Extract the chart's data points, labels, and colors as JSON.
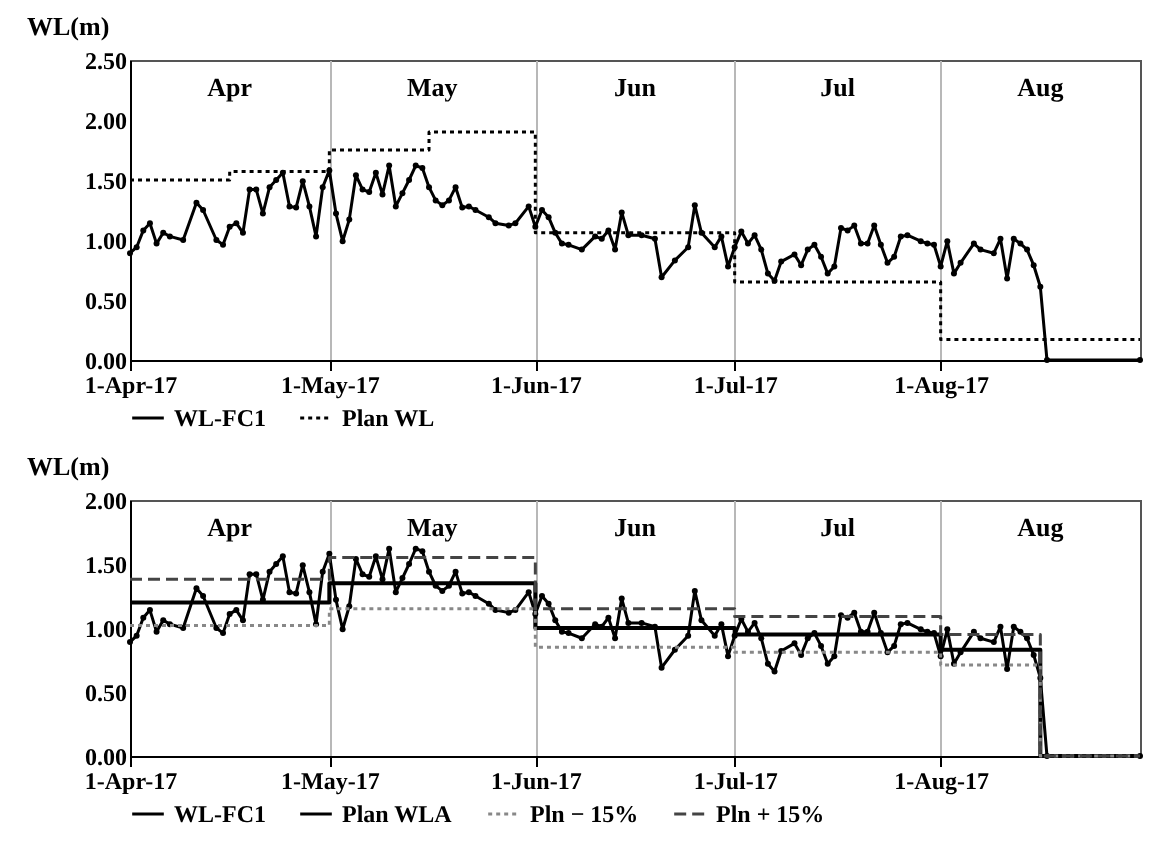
{
  "chart_data": [
    {
      "type": "line",
      "ylabel": "WL(m)",
      "xlim": [
        "2017-04-01",
        "2017-08-31"
      ],
      "xticks": [
        {
          "value": "2017-04-01",
          "label": "1-Apr-17"
        },
        {
          "value": "2017-05-01",
          "label": "1-May-17"
        },
        {
          "value": "2017-06-01",
          "label": "1-Jun-17"
        },
        {
          "value": "2017-07-01",
          "label": "1-Jul-17"
        },
        {
          "value": "2017-08-01",
          "label": "1-Aug-17"
        }
      ],
      "ylim": [
        0,
        2.5
      ],
      "yticks": [
        {
          "value": 0,
          "label": "0.00"
        },
        {
          "value": 0.5,
          "label": "0.50"
        },
        {
          "value": 1,
          "label": "1.00"
        },
        {
          "value": 1.5,
          "label": "1.50"
        },
        {
          "value": 2,
          "label": "2.00"
        },
        {
          "value": 2.5,
          "label": "2.50"
        }
      ],
      "grid": "x",
      "legend": "bottom",
      "annotations": [
        "Apr",
        "May",
        "Jun",
        "Jul",
        "Aug"
      ],
      "series": [
        {
          "name": "WL-FC1",
          "color": "#000000",
          "marker": "circle",
          "line_style": "solid",
          "x": [
            "2017-04-01",
            "2017-04-02",
            "2017-04-03",
            "2017-04-04",
            "2017-04-05",
            "2017-04-06",
            "2017-04-07",
            "2017-04-09",
            "2017-04-11",
            "2017-04-12",
            "2017-04-14",
            "2017-04-15",
            "2017-04-16",
            "2017-04-17",
            "2017-04-18",
            "2017-04-19",
            "2017-04-20",
            "2017-04-21",
            "2017-04-22",
            "2017-04-23",
            "2017-04-24",
            "2017-04-25",
            "2017-04-26",
            "2017-04-27",
            "2017-04-28",
            "2017-04-29",
            "2017-04-30",
            "2017-05-01",
            "2017-05-02",
            "2017-05-03",
            "2017-05-04",
            "2017-05-05",
            "2017-05-06",
            "2017-05-07",
            "2017-05-08",
            "2017-05-09",
            "2017-05-10",
            "2017-05-11",
            "2017-05-12",
            "2017-05-13",
            "2017-05-14",
            "2017-05-15",
            "2017-05-16",
            "2017-05-17",
            "2017-05-18",
            "2017-05-19",
            "2017-05-20",
            "2017-05-21",
            "2017-05-22",
            "2017-05-23",
            "2017-05-25",
            "2017-05-26",
            "2017-05-28",
            "2017-05-29",
            "2017-05-31",
            "2017-06-01",
            "2017-06-02",
            "2017-06-03",
            "2017-06-04",
            "2017-06-05",
            "2017-06-06",
            "2017-06-08",
            "2017-06-10",
            "2017-06-11",
            "2017-06-12",
            "2017-06-13",
            "2017-06-14",
            "2017-06-15",
            "2017-06-17",
            "2017-06-19",
            "2017-06-20",
            "2017-06-22",
            "2017-06-24",
            "2017-06-25",
            "2017-06-26",
            "2017-06-28",
            "2017-06-29",
            "2017-06-30",
            "2017-07-01",
            "2017-07-02",
            "2017-07-03",
            "2017-07-04",
            "2017-07-05",
            "2017-07-06",
            "2017-07-07",
            "2017-07-08",
            "2017-07-10",
            "2017-07-11",
            "2017-07-12",
            "2017-07-13",
            "2017-07-14",
            "2017-07-15",
            "2017-07-16",
            "2017-07-17",
            "2017-07-18",
            "2017-07-19",
            "2017-07-20",
            "2017-07-21",
            "2017-07-22",
            "2017-07-23",
            "2017-07-24",
            "2017-07-25",
            "2017-07-26",
            "2017-07-27",
            "2017-07-29",
            "2017-07-30",
            "2017-07-31",
            "2017-08-01",
            "2017-08-02",
            "2017-08-03",
            "2017-08-04",
            "2017-08-06",
            "2017-08-07",
            "2017-08-09",
            "2017-08-10",
            "2017-08-11",
            "2017-08-12",
            "2017-08-13",
            "2017-08-14",
            "2017-08-15",
            "2017-08-16",
            "2017-08-17",
            "2017-08-31"
          ],
          "values": [
            0.89,
            0.94,
            1.08,
            1.14,
            0.97,
            1.06,
            1.03,
            1.0,
            1.31,
            1.25,
            1.0,
            0.96,
            1.11,
            1.14,
            1.06,
            1.42,
            1.42,
            1.22,
            1.44,
            1.5,
            1.56,
            1.28,
            1.27,
            1.49,
            1.28,
            1.03,
            1.44,
            1.58,
            1.22,
            0.99,
            1.17,
            1.54,
            1.42,
            1.4,
            1.56,
            1.38,
            1.62,
            1.28,
            1.39,
            1.5,
            1.62,
            1.6,
            1.44,
            1.33,
            1.29,
            1.33,
            1.44,
            1.27,
            1.28,
            1.25,
            1.19,
            1.14,
            1.12,
            1.14,
            1.28,
            1.11,
            1.25,
            1.19,
            1.06,
            0.97,
            0.96,
            0.92,
            1.03,
            1.01,
            1.08,
            0.92,
            1.23,
            1.04,
            1.04,
            1.01,
            0.69,
            0.83,
            0.94,
            1.29,
            1.06,
            0.94,
            1.03,
            0.78,
            0.94,
            1.07,
            0.97,
            1.04,
            0.92,
            0.72,
            0.66,
            0.82,
            0.88,
            0.79,
            0.92,
            0.96,
            0.86,
            0.72,
            0.78,
            1.1,
            1.08,
            1.12,
            0.97,
            0.97,
            1.12,
            0.96,
            0.81,
            0.86,
            1.03,
            1.04,
            0.99,
            0.97,
            0.96,
            0.78,
            0.99,
            0.72,
            0.81,
            0.97,
            0.92,
            0.89,
            1.01,
            0.68,
            1.01,
            0.97,
            0.92,
            0.79,
            0.61,
            0,
            0
          ]
        },
        {
          "name": "Plan WL",
          "type": "step",
          "color": "#000000",
          "line_style": "dotted",
          "x": [
            "2017-04-01",
            "2017-04-16",
            "2017-05-01",
            "2017-05-16",
            "2017-06-01",
            "2017-07-01",
            "2017-08-01",
            "2017-08-31"
          ],
          "values": [
            1.5,
            1.57,
            1.75,
            1.9,
            1.06,
            0.65,
            0.17,
            0.17
          ]
        }
      ]
    },
    {
      "type": "line",
      "ylabel": "WL(m)",
      "xlim": [
        "2017-04-01",
        "2017-08-31"
      ],
      "xticks": [
        {
          "value": "2017-04-01",
          "label": "1-Apr-17"
        },
        {
          "value": "2017-05-01",
          "label": "1-May-17"
        },
        {
          "value": "2017-06-01",
          "label": "1-Jun-17"
        },
        {
          "value": "2017-07-01",
          "label": "1-Jul-17"
        },
        {
          "value": "2017-08-01",
          "label": "1-Aug-17"
        }
      ],
      "ylim": [
        0,
        2
      ],
      "yticks": [
        {
          "value": 0,
          "label": "0.00"
        },
        {
          "value": 0.5,
          "label": "0.50"
        },
        {
          "value": 1,
          "label": "1.00"
        },
        {
          "value": 1.5,
          "label": "1.50"
        },
        {
          "value": 2,
          "label": "2.00"
        }
      ],
      "grid": "x",
      "legend": "bottom",
      "annotations": [
        "Apr",
        "May",
        "Jun",
        "Jul",
        "Aug"
      ],
      "series": [
        {
          "name": "WL-FC1",
          "color": "#000000",
          "marker": "circle",
          "line_style": "solid",
          "x": [
            "2017-04-01",
            "2017-04-02",
            "2017-04-03",
            "2017-04-04",
            "2017-04-05",
            "2017-04-06",
            "2017-04-07",
            "2017-04-09",
            "2017-04-11",
            "2017-04-12",
            "2017-04-14",
            "2017-04-15",
            "2017-04-16",
            "2017-04-17",
            "2017-04-18",
            "2017-04-19",
            "2017-04-20",
            "2017-04-21",
            "2017-04-22",
            "2017-04-23",
            "2017-04-24",
            "2017-04-25",
            "2017-04-26",
            "2017-04-27",
            "2017-04-28",
            "2017-04-29",
            "2017-04-30",
            "2017-05-01",
            "2017-05-02",
            "2017-05-03",
            "2017-05-04",
            "2017-05-05",
            "2017-05-06",
            "2017-05-07",
            "2017-05-08",
            "2017-05-09",
            "2017-05-10",
            "2017-05-11",
            "2017-05-12",
            "2017-05-13",
            "2017-05-14",
            "2017-05-15",
            "2017-05-16",
            "2017-05-17",
            "2017-05-18",
            "2017-05-19",
            "2017-05-20",
            "2017-05-21",
            "2017-05-22",
            "2017-05-23",
            "2017-05-25",
            "2017-05-26",
            "2017-05-28",
            "2017-05-29",
            "2017-05-31",
            "2017-06-01",
            "2017-06-02",
            "2017-06-03",
            "2017-06-04",
            "2017-06-05",
            "2017-06-06",
            "2017-06-08",
            "2017-06-10",
            "2017-06-11",
            "2017-06-12",
            "2017-06-13",
            "2017-06-14",
            "2017-06-15",
            "2017-06-17",
            "2017-06-19",
            "2017-06-20",
            "2017-06-22",
            "2017-06-24",
            "2017-06-25",
            "2017-06-26",
            "2017-06-28",
            "2017-06-29",
            "2017-06-30",
            "2017-07-01",
            "2017-07-02",
            "2017-07-03",
            "2017-07-04",
            "2017-07-05",
            "2017-07-06",
            "2017-07-07",
            "2017-07-08",
            "2017-07-10",
            "2017-07-11",
            "2017-07-12",
            "2017-07-13",
            "2017-07-14",
            "2017-07-15",
            "2017-07-16",
            "2017-07-17",
            "2017-07-18",
            "2017-07-19",
            "2017-07-20",
            "2017-07-21",
            "2017-07-22",
            "2017-07-23",
            "2017-07-24",
            "2017-07-25",
            "2017-07-26",
            "2017-07-27",
            "2017-07-29",
            "2017-07-30",
            "2017-07-31",
            "2017-08-01",
            "2017-08-02",
            "2017-08-03",
            "2017-08-04",
            "2017-08-06",
            "2017-08-07",
            "2017-08-09",
            "2017-08-10",
            "2017-08-11",
            "2017-08-12",
            "2017-08-13",
            "2017-08-14",
            "2017-08-15",
            "2017-08-16",
            "2017-08-17",
            "2017-08-31"
          ],
          "values": [
            0.89,
            0.94,
            1.08,
            1.14,
            0.97,
            1.06,
            1.03,
            1.0,
            1.31,
            1.25,
            1.0,
            0.96,
            1.11,
            1.14,
            1.06,
            1.42,
            1.42,
            1.22,
            1.44,
            1.5,
            1.56,
            1.28,
            1.27,
            1.49,
            1.28,
            1.03,
            1.44,
            1.58,
            1.22,
            0.99,
            1.17,
            1.54,
            1.42,
            1.4,
            1.56,
            1.38,
            1.62,
            1.28,
            1.39,
            1.5,
            1.62,
            1.6,
            1.44,
            1.33,
            1.29,
            1.33,
            1.44,
            1.27,
            1.28,
            1.25,
            1.19,
            1.14,
            1.12,
            1.14,
            1.28,
            1.11,
            1.25,
            1.19,
            1.06,
            0.97,
            0.96,
            0.92,
            1.03,
            1.01,
            1.08,
            0.92,
            1.23,
            1.04,
            1.04,
            1.01,
            0.69,
            0.83,
            0.94,
            1.29,
            1.06,
            0.94,
            1.03,
            0.78,
            0.94,
            1.07,
            0.97,
            1.04,
            0.92,
            0.72,
            0.66,
            0.82,
            0.88,
            0.79,
            0.92,
            0.96,
            0.86,
            0.72,
            0.78,
            1.1,
            1.08,
            1.12,
            0.97,
            0.97,
            1.12,
            0.96,
            0.81,
            0.86,
            1.03,
            1.04,
            0.99,
            0.97,
            0.96,
            0.78,
            0.99,
            0.72,
            0.81,
            0.97,
            0.92,
            0.89,
            1.01,
            0.68,
            1.01,
            0.97,
            0.92,
            0.79,
            0.61,
            0,
            0
          ]
        },
        {
          "name": "Plan WLA",
          "type": "step",
          "color": "#000000",
          "line_style": "solid",
          "x": [
            "2017-04-01",
            "2017-05-01",
            "2017-06-01",
            "2017-07-01",
            "2017-08-01",
            "2017-08-16",
            "2017-08-31"
          ],
          "values": [
            1.2,
            1.35,
            1.0,
            0.95,
            0.83,
            0,
            0
          ]
        },
        {
          "name": "Pln − 15%",
          "type": "step",
          "color": "#888888",
          "line_style": "dotted",
          "x": [
            "2017-04-01",
            "2017-05-01",
            "2017-06-01",
            "2017-07-01",
            "2017-08-01",
            "2017-08-16",
            "2017-08-31"
          ],
          "values": [
            1.02,
            1.15,
            0.85,
            0.81,
            0.71,
            0,
            0
          ]
        },
        {
          "name": "Pln + 15%",
          "type": "step",
          "color": "#444444",
          "line_style": "dashed",
          "x": [
            "2017-04-01",
            "2017-05-01",
            "2017-06-01",
            "2017-07-01",
            "2017-08-01",
            "2017-08-16",
            "2017-08-31"
          ],
          "values": [
            1.38,
            1.55,
            1.15,
            1.09,
            0.95,
            0,
            0
          ]
        }
      ]
    }
  ]
}
